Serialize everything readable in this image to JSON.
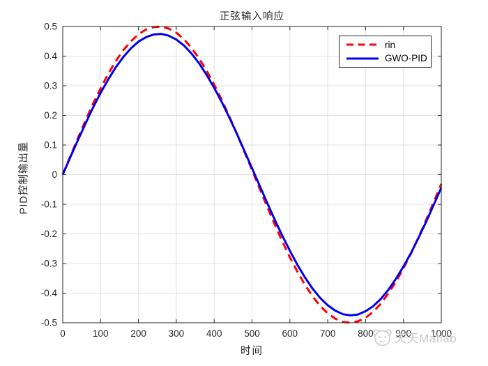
{
  "figure": {
    "background": "#ffffff"
  },
  "colors": {
    "axis": "#262626",
    "grid": "#e0e0e0",
    "tick_label": "#262626",
    "rin_line": "#ff0000",
    "gwo_line": "#0000ee",
    "legend_border": "#262626",
    "watermark": "#c7c7c7"
  },
  "watermark": {
    "text": "天天Matlab",
    "logo": "panda-circle-icon"
  },
  "chart_data": {
    "type": "line",
    "title": "正弦输入响应",
    "xlabel": "时间",
    "ylabel": "PID控制输出量",
    "xlim": [
      0,
      1000
    ],
    "ylim": [
      -0.5,
      0.5
    ],
    "xticks": [
      0,
      100,
      200,
      300,
      400,
      500,
      600,
      700,
      800,
      900,
      1000
    ],
    "yticks": [
      -0.5,
      -0.4,
      -0.3,
      -0.2,
      -0.1,
      0,
      0.1,
      0.2,
      0.3,
      0.4,
      0.5
    ],
    "grid": true,
    "box": true,
    "legend_position": "top-right",
    "x": [
      0,
      20,
      40,
      60,
      80,
      100,
      120,
      140,
      160,
      180,
      200,
      220,
      240,
      260,
      280,
      300,
      320,
      340,
      360,
      380,
      400,
      420,
      440,
      460,
      480,
      500,
      520,
      540,
      560,
      580,
      600,
      620,
      640,
      660,
      680,
      700,
      720,
      740,
      760,
      780,
      800,
      820,
      840,
      860,
      880,
      900,
      920,
      940,
      960,
      980,
      1000
    ],
    "series": [
      {
        "name": "rin",
        "color": "#ff0000",
        "line_style": "dashed",
        "line_width": 3,
        "values": [
          0.0,
          0.062,
          0.123,
          0.182,
          0.239,
          0.291,
          0.34,
          0.383,
          0.42,
          0.45,
          0.474,
          0.49,
          0.498,
          0.5,
          0.493,
          0.479,
          0.457,
          0.428,
          0.392,
          0.351,
          0.304,
          0.252,
          0.197,
          0.138,
          0.077,
          0.016,
          -0.047,
          -0.108,
          -0.168,
          -0.225,
          -0.279,
          -0.328,
          -0.372,
          -0.411,
          -0.443,
          -0.468,
          -0.486,
          -0.497,
          -0.5,
          -0.495,
          -0.483,
          -0.463,
          -0.436,
          -0.401,
          -0.362,
          -0.316,
          -0.266,
          -0.211,
          -0.153,
          -0.093,
          -0.031
        ]
      },
      {
        "name": "GWO-PID",
        "color": "#0000ee",
        "line_style": "solid",
        "line_width": 3,
        "values": [
          0.0,
          0.059,
          0.116,
          0.172,
          0.226,
          0.276,
          0.321,
          0.362,
          0.397,
          0.426,
          0.449,
          0.464,
          0.473,
          0.475,
          0.469,
          0.456,
          0.436,
          0.409,
          0.376,
          0.337,
          0.293,
          0.245,
          0.193,
          0.138,
          0.08,
          0.022,
          -0.037,
          -0.095,
          -0.152,
          -0.206,
          -0.257,
          -0.305,
          -0.347,
          -0.385,
          -0.416,
          -0.441,
          -0.459,
          -0.471,
          -0.475,
          -0.472,
          -0.461,
          -0.444,
          -0.42,
          -0.389,
          -0.352,
          -0.31,
          -0.264,
          -0.213,
          -0.159,
          -0.102,
          -0.044
        ]
      }
    ]
  }
}
